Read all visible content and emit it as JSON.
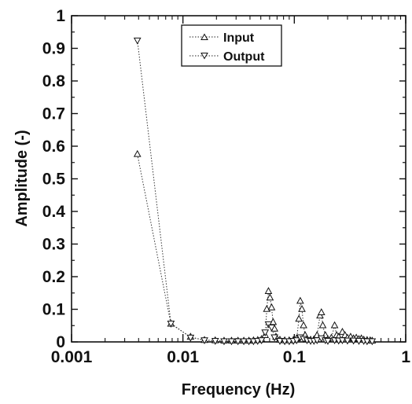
{
  "chart_data": {
    "type": "scatter",
    "xlabel": "Frequency (Hz)",
    "ylabel": "Amplitude (-)",
    "xscale": "log",
    "xlim": [
      0.001,
      1
    ],
    "ylim": [
      0,
      1
    ],
    "x_ticks": [
      "0.001",
      "0.01",
      "0.1",
      "1"
    ],
    "y_ticks": [
      "0",
      "0.1",
      "0.2",
      "0.3",
      "0.4",
      "0.5",
      "0.6",
      "0.7",
      "0.8",
      "0.9",
      "1"
    ],
    "legend_position": "top-center",
    "grid": false,
    "series": [
      {
        "name": "Input",
        "marker": "triangle-up",
        "line": "dotted",
        "x": [
          0.0039,
          0.0078,
          0.0117,
          0.0156,
          0.0195,
          0.0234,
          0.0273,
          0.0312,
          0.0352,
          0.0391,
          0.043,
          0.0469,
          0.0508,
          0.0547,
          0.0566,
          0.0586,
          0.0605,
          0.0625,
          0.0645,
          0.0664,
          0.0684,
          0.0742,
          0.082,
          0.09,
          0.098,
          0.105,
          0.11,
          0.113,
          0.117,
          0.121,
          0.125,
          0.13,
          0.14,
          0.15,
          0.16,
          0.17,
          0.175,
          0.18,
          0.19,
          0.2,
          0.215,
          0.23,
          0.24,
          0.25,
          0.27,
          0.285,
          0.3,
          0.32,
          0.34,
          0.36,
          0.38,
          0.4,
          0.42,
          0.45,
          0.48,
          0.5
        ],
        "y": [
          0.575,
          0.055,
          0.015,
          0.005,
          0.004,
          0.003,
          0.003,
          0.003,
          0.003,
          0.003,
          0.004,
          0.005,
          0.008,
          0.02,
          0.1,
          0.155,
          0.135,
          0.105,
          0.06,
          0.04,
          0.015,
          0.006,
          0.004,
          0.004,
          0.005,
          0.01,
          0.07,
          0.125,
          0.1,
          0.05,
          0.02,
          0.008,
          0.006,
          0.007,
          0.02,
          0.08,
          0.09,
          0.05,
          0.02,
          0.008,
          0.012,
          0.05,
          0.02,
          0.015,
          0.03,
          0.02,
          0.012,
          0.015,
          0.01,
          0.012,
          0.008,
          0.01,
          0.006,
          0.005,
          0.004,
          0.003
        ]
      },
      {
        "name": "Output",
        "marker": "triangle-down",
        "line": "dotted",
        "x": [
          0.0039,
          0.0078,
          0.0117,
          0.0156,
          0.0195,
          0.0234,
          0.0273,
          0.0312,
          0.0352,
          0.0391,
          0.043,
          0.0469,
          0.0508,
          0.0547,
          0.0586,
          0.0625,
          0.0664,
          0.0742,
          0.082,
          0.09,
          0.098,
          0.105,
          0.113,
          0.121,
          0.13,
          0.14,
          0.15,
          0.16,
          0.175,
          0.19,
          0.2,
          0.23,
          0.25,
          0.27,
          0.3,
          0.34,
          0.38,
          0.42,
          0.45,
          0.5
        ],
        "y": [
          0.925,
          0.057,
          0.014,
          0.006,
          0.004,
          0.003,
          0.003,
          0.003,
          0.003,
          0.003,
          0.003,
          0.004,
          0.006,
          0.03,
          0.055,
          0.045,
          0.015,
          0.004,
          0.003,
          0.003,
          0.004,
          0.006,
          0.015,
          0.01,
          0.006,
          0.004,
          0.004,
          0.006,
          0.012,
          0.006,
          0.004,
          0.006,
          0.005,
          0.006,
          0.005,
          0.005,
          0.004,
          0.004,
          0.003,
          0.003
        ]
      }
    ]
  }
}
